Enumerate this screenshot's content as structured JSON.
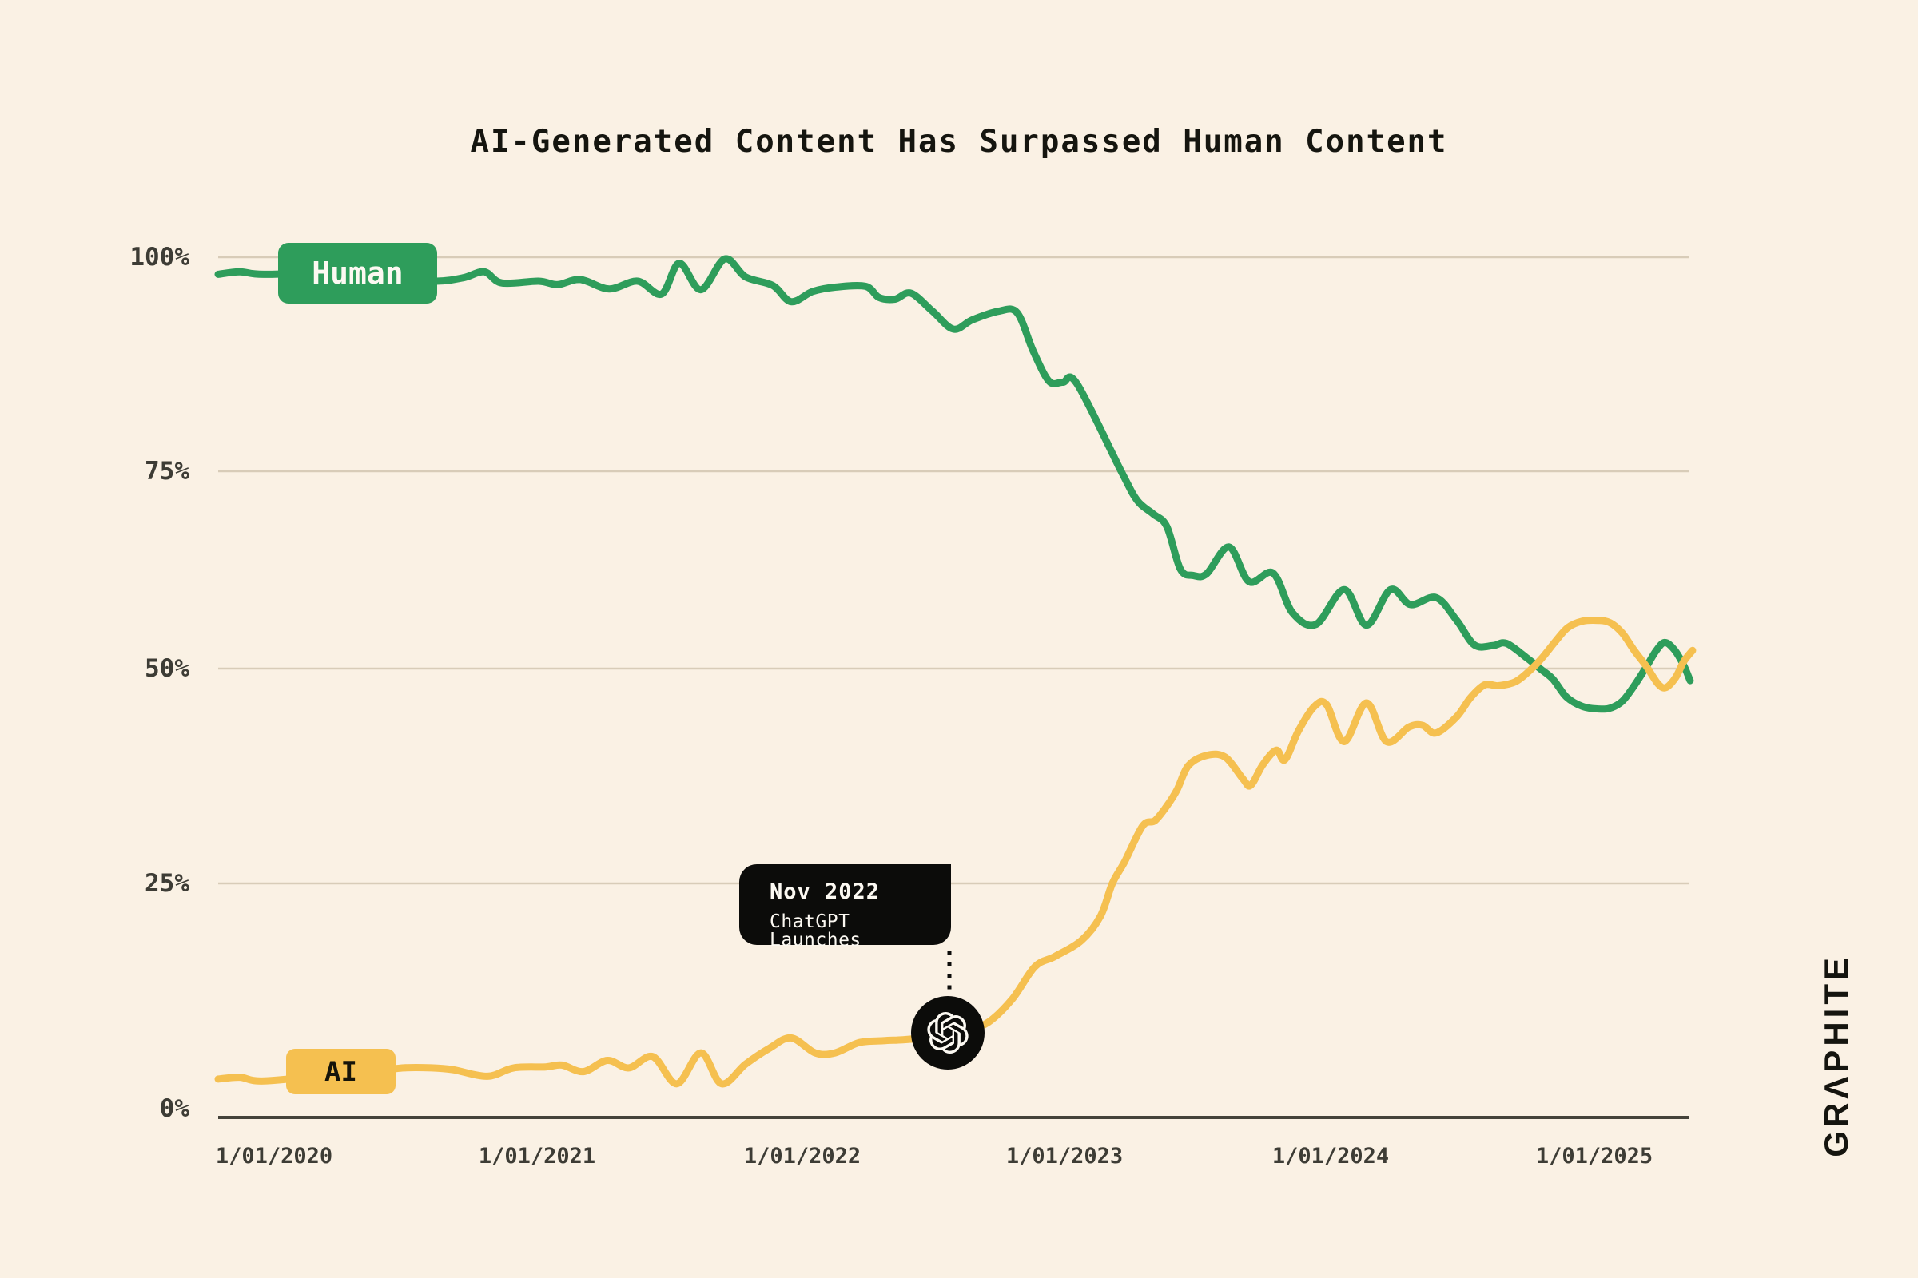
{
  "title": "AI-Generated Content Has Surpassed Human Content",
  "colors": {
    "background": "#faf1e4",
    "human_green": "#2e9d5b",
    "ai_yellow": "#f5c050",
    "gridline": "#d8ccb8",
    "axis": "#45433a",
    "tick_text": "#3d3c35",
    "ink": "#15150f",
    "black": "#0c0c0a",
    "badge_text_light": "#fcf9f2"
  },
  "legend": {
    "human_label": "Human",
    "ai_label": "AI"
  },
  "annotation": {
    "line1": "Nov 2022",
    "line2": "ChatGPT Launches",
    "marker_icon": "openai-logo-icon"
  },
  "branding": {
    "logo_text": "GRΛPHITE"
  },
  "chart_data": {
    "type": "line",
    "title": "AI-Generated Content Has Surpassed Human Content",
    "x_axis": {
      "unit": "months_since_2020_01",
      "ticks": [
        "1/01/2020",
        "1/01/2021",
        "1/01/2022",
        "1/01/2023",
        "1/01/2024",
        "1/01/2025"
      ],
      "tick_months": [
        0,
        12,
        24,
        36,
        48,
        60
      ]
    },
    "y_axis": {
      "ticks": [
        "100%",
        "75%",
        "50%",
        "25%",
        "0%"
      ],
      "range": [
        0,
        100
      ],
      "grid": true
    },
    "annotation_marker": {
      "month": 30.6,
      "value": 8.7,
      "label": "Nov 2022 ChatGPT Launches"
    },
    "series": [
      {
        "name": "Human",
        "color": "#2e9d5b",
        "points": [
          [
            -2.54,
            98.0
          ],
          [
            -1.56,
            98.3
          ],
          [
            -0.47,
            98.0
          ],
          [
            2.79,
            98.2
          ],
          [
            5.7,
            97.6
          ],
          [
            7.37,
            97.2
          ],
          [
            8.6,
            97.6
          ],
          [
            9.54,
            98.3
          ],
          [
            10.34,
            97.0
          ],
          [
            12.01,
            97.2
          ],
          [
            12.88,
            96.8
          ],
          [
            13.9,
            97.4
          ],
          [
            15.21,
            96.3
          ],
          [
            16.51,
            97.2
          ],
          [
            17.6,
            95.7
          ],
          [
            18.4,
            99.3
          ],
          [
            19.38,
            96.2
          ],
          [
            20.47,
            99.8
          ],
          [
            21.41,
            97.7
          ],
          [
            22.65,
            96.7
          ],
          [
            23.48,
            94.8
          ],
          [
            24.46,
            96.0
          ],
          [
            25.48,
            96.5
          ],
          [
            26.86,
            96.6
          ],
          [
            27.47,
            95.3
          ],
          [
            28.2,
            95.1
          ],
          [
            28.92,
            95.8
          ],
          [
            29.9,
            93.7
          ],
          [
            30.85,
            91.6
          ],
          [
            31.72,
            92.7
          ],
          [
            32.92,
            93.7
          ],
          [
            33.75,
            93.5
          ],
          [
            34.48,
            89.0
          ],
          [
            35.2,
            85.5
          ],
          [
            35.82,
            85.4
          ],
          [
            36.47,
            85.2
          ],
          [
            38.47,
            75.0
          ],
          [
            39.2,
            71.3
          ],
          [
            39.92,
            69.6
          ],
          [
            40.54,
            68.0
          ],
          [
            41.16,
            62.6
          ],
          [
            41.74,
            61.8
          ],
          [
            42.35,
            62.0
          ],
          [
            43.37,
            65.4
          ],
          [
            44.28,
            61.0
          ],
          [
            45.37,
            62.1
          ],
          [
            46.24,
            57.1
          ],
          [
            47.32,
            55.6
          ],
          [
            48.6,
            60.0
          ],
          [
            49.61,
            55.5
          ],
          [
            50.7,
            60.0
          ],
          [
            51.61,
            58.1
          ],
          [
            52.77,
            59.0
          ],
          [
            53.71,
            56.1
          ],
          [
            54.51,
            53.0
          ],
          [
            55.35,
            52.9
          ],
          [
            55.96,
            53.2
          ],
          [
            56.87,
            51.4
          ],
          [
            57.49,
            50.0
          ],
          [
            58.07,
            48.8
          ],
          [
            58.69,
            46.7
          ],
          [
            59.41,
            45.6
          ],
          [
            60.14,
            45.3
          ],
          [
            60.68,
            45.4
          ],
          [
            61.23,
            46.2
          ],
          [
            61.77,
            48.0
          ],
          [
            62.32,
            50.2
          ],
          [
            62.75,
            52.2
          ],
          [
            63.15,
            53.3
          ],
          [
            63.59,
            52.4
          ],
          [
            64.02,
            50.4
          ],
          [
            64.31,
            48.6
          ]
        ]
      },
      {
        "name": "AI",
        "color": "#f5c050",
        "points": [
          [
            -2.54,
            4.1
          ],
          [
            -1.56,
            4.3
          ],
          [
            -0.47,
            3.9
          ],
          [
            2.79,
            4.6
          ],
          [
            4.43,
            4.9
          ],
          [
            5.88,
            5.3
          ],
          [
            7.15,
            5.3
          ],
          [
            8.13,
            5.1
          ],
          [
            9.69,
            4.4
          ],
          [
            10.89,
            5.3
          ],
          [
            12.34,
            5.4
          ],
          [
            13.07,
            5.6
          ],
          [
            14.05,
            4.9
          ],
          [
            15.13,
            6.1
          ],
          [
            16.11,
            5.3
          ],
          [
            17.2,
            6.5
          ],
          [
            18.29,
            3.6
          ],
          [
            19.38,
            6.9
          ],
          [
            20.32,
            3.6
          ],
          [
            21.41,
            5.7
          ],
          [
            22.5,
            7.4
          ],
          [
            23.48,
            8.5
          ],
          [
            24.57,
            6.9
          ],
          [
            25.48,
            6.9
          ],
          [
            26.57,
            8.0
          ],
          [
            27.66,
            8.2
          ],
          [
            28.56,
            8.3
          ],
          [
            29.65,
            8.5
          ],
          [
            30.56,
            8.7
          ],
          [
            31.47,
            9.3
          ],
          [
            32.45,
            10.2
          ],
          [
            33.54,
            12.7
          ],
          [
            34.55,
            16.1
          ],
          [
            35.46,
            17.2
          ],
          [
            36.66,
            18.9
          ],
          [
            37.53,
            21.5
          ],
          [
            38.07,
            25.0
          ],
          [
            38.62,
            27.5
          ],
          [
            39.45,
            31.7
          ],
          [
            40.0,
            32.3
          ],
          [
            40.54,
            34.0
          ],
          [
            41.01,
            35.9
          ],
          [
            41.52,
            38.7
          ],
          [
            42.35,
            39.9
          ],
          [
            43.19,
            39.7
          ],
          [
            43.99,
            37.2
          ],
          [
            44.35,
            36.4
          ],
          [
            44.9,
            38.8
          ],
          [
            45.51,
            40.5
          ],
          [
            45.91,
            39.4
          ],
          [
            46.53,
            42.8
          ],
          [
            47.25,
            45.6
          ],
          [
            47.8,
            45.8
          ],
          [
            48.6,
            41.5
          ],
          [
            49.61,
            46.0
          ],
          [
            50.52,
            41.5
          ],
          [
            51.54,
            43.2
          ],
          [
            52.15,
            43.4
          ],
          [
            52.77,
            42.5
          ],
          [
            53.71,
            44.4
          ],
          [
            54.33,
            46.6
          ],
          [
            54.98,
            48.1
          ],
          [
            55.6,
            48.0
          ],
          [
            56.4,
            48.5
          ],
          [
            57.12,
            50.0
          ],
          [
            57.6,
            51.4
          ],
          [
            58.21,
            53.5
          ],
          [
            58.76,
            55.2
          ],
          [
            59.41,
            56.0
          ],
          [
            60.14,
            56.1
          ],
          [
            60.68,
            55.8
          ],
          [
            61.23,
            54.5
          ],
          [
            61.77,
            52.3
          ],
          [
            62.32,
            50.3
          ],
          [
            62.86,
            48.2
          ],
          [
            63.22,
            47.8
          ],
          [
            63.66,
            49.0
          ],
          [
            64.02,
            50.9
          ],
          [
            64.42,
            52.3
          ]
        ]
      }
    ]
  }
}
